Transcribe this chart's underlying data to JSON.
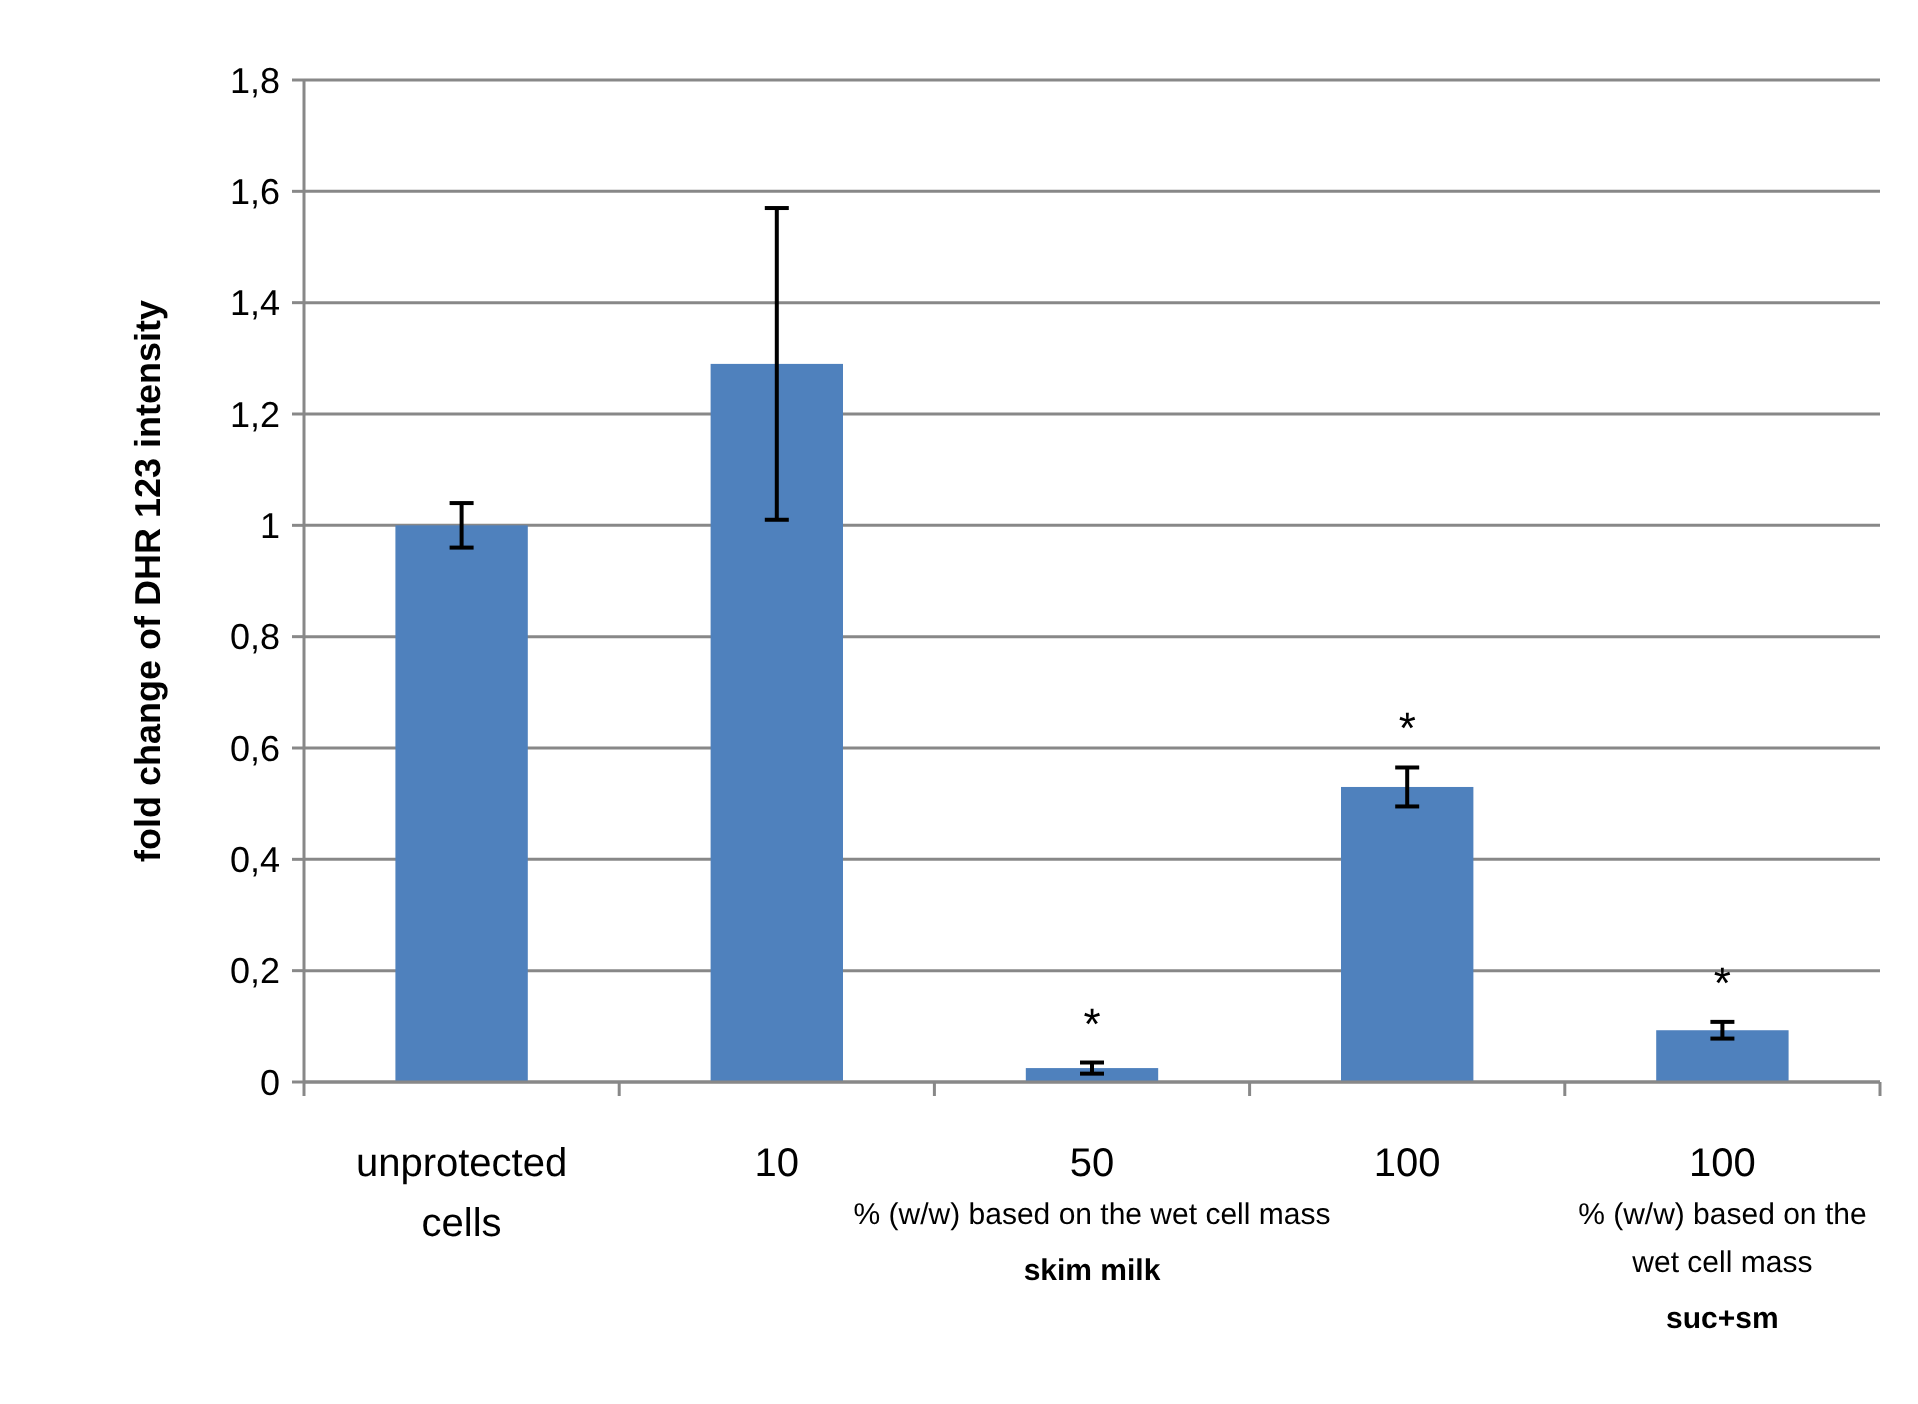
{
  "chart_data": {
    "type": "bar",
    "ylabel": "fold change of DHR 123 intensity",
    "categories": [
      "unprotected cells",
      "10",
      "50",
      "100",
      "100"
    ],
    "values": [
      1.0,
      1.29,
      0.025,
      0.53,
      0.093
    ],
    "errors": [
      0.04,
      0.28,
      0.01,
      0.035,
      0.015
    ],
    "color": "#4f81bd",
    "ylim": [
      0,
      1.8
    ],
    "yticks": [
      0,
      {
        "value": 0.2,
        "label": "0,2"
      },
      {
        "value": 0.4,
        "label": "0,4"
      },
      {
        "value": 0.6,
        "label": "0,6"
      },
      {
        "value": 0.8,
        "label": "0,8"
      },
      1,
      {
        "value": 1.2,
        "label": "1,2"
      },
      {
        "value": 1.4,
        "label": "1,4"
      },
      {
        "value": 1.6,
        "label": "1,6"
      },
      {
        "value": 1.8,
        "label": "1,8"
      }
    ],
    "grid": "y",
    "annotations": [
      "*",
      "*",
      "*",
      "% (w/w) based on the wet cell mass",
      "skim milk",
      "% (w/w) based on the wet cell mass",
      "suc+sm"
    ]
  }
}
